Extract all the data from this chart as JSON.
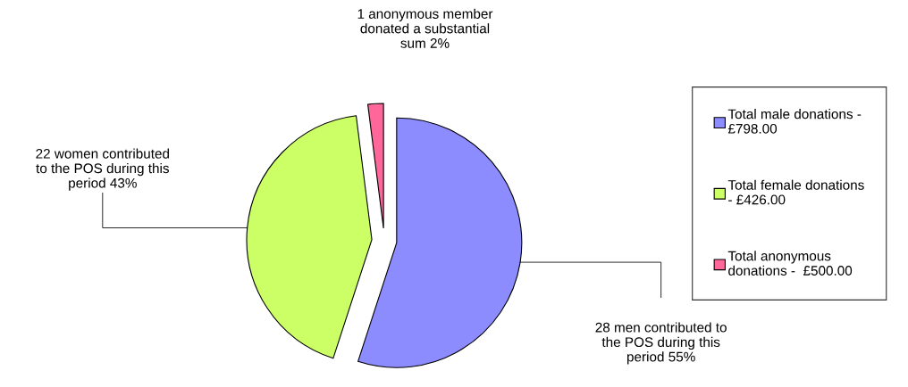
{
  "chart_data": {
    "type": "pie",
    "categories": [
      "Total male donations -\n£798.00",
      "Total female donations\n- £426.00",
      "Total anonymous\ndonations -  £500.00"
    ],
    "values": [
      55,
      43,
      2
    ],
    "colors": [
      "#8c8cff",
      "#ccff66",
      "#ff6699"
    ],
    "annotations": [
      "28 men contributed to\nthe POS during this\nperiod 55%",
      "22 women contributed\nto the POS during this\nperiod 43%",
      "1 anonymous member\ndonated a substantial\nsum 2%"
    ],
    "legend": "right"
  }
}
